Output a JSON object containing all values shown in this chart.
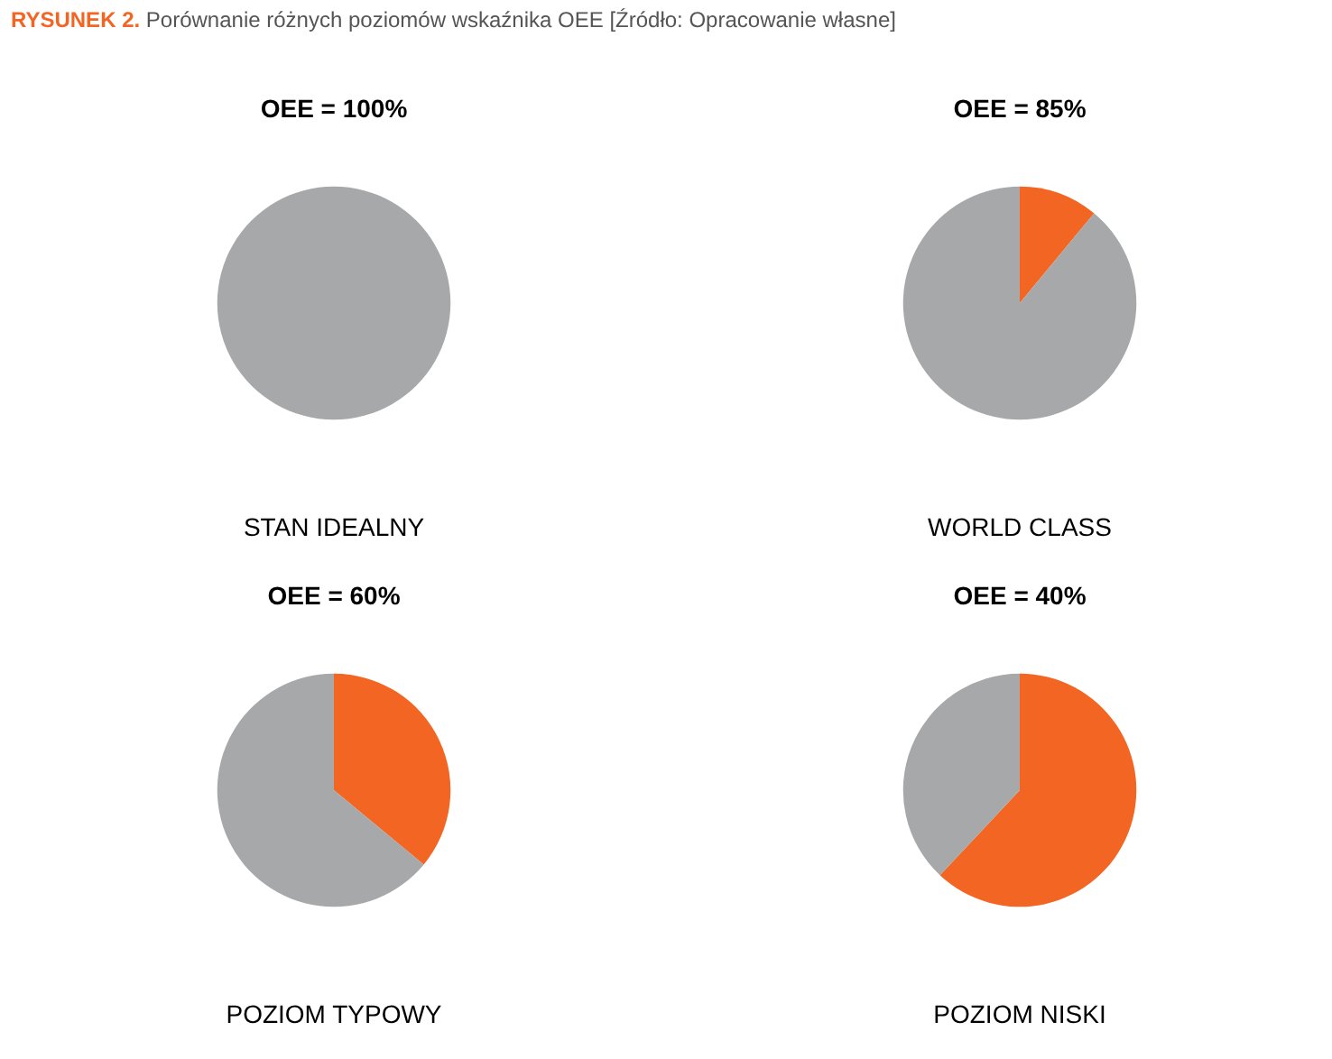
{
  "chart_data": [
    {
      "type": "other",
      "title": "RYSUNEK 2.",
      "subtitle": "Porównanie różnych poziomów wskaźnika OEE [Źródło: Opracowanie własne]",
      "color": "#f26522"
    },
    {
      "type": "pie",
      "title": "OEE = 100%",
      "xlabel": "STAN IDEALNY",
      "categories": [
        null
      ],
      "values": [
        100
      ],
      "colors": [
        "#a7a8aa"
      ]
    },
    {
      "type": "pie",
      "title": "OEE = 85%",
      "xlabel": "WORLD CLASS",
      "categories": [
        null,
        null
      ],
      "values": [
        11,
        89
      ],
      "colors": [
        "#f26522",
        "#a7a8aa"
      ]
    },
    {
      "type": "pie",
      "title": "OEE = 60%",
      "xlabel": "POZIOM TYPOWY",
      "categories": [
        null,
        null
      ],
      "values": [
        36,
        64
      ],
      "colors": [
        "#f26522",
        "#a7a8aa"
      ]
    },
    {
      "type": "pie",
      "title": "OEE = 40%",
      "xlabel": "POZIOM NISKI",
      "categories": [
        null,
        null
      ],
      "values": [
        62,
        38
      ],
      "colors": [
        "#f26522",
        "#a7a8aa"
      ]
    }
  ]
}
